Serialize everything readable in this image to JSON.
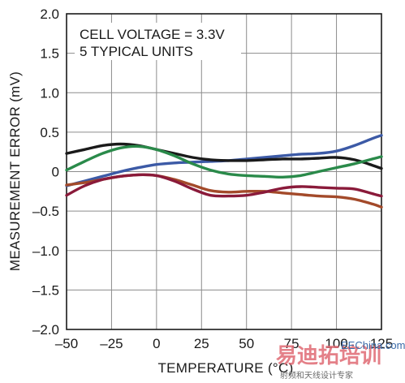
{
  "chart_data": {
    "type": "line",
    "title": "",
    "annotations": [
      "CELL VOLTAGE = 3.3V",
      "5 TYPICAL UNITS"
    ],
    "xlabel": "TEMPERATURE (°C)",
    "ylabel": "MEASUREMENT ERROR (mV)",
    "xlim": [
      -50,
      125
    ],
    "ylim": [
      -2.0,
      2.0
    ],
    "x_ticks": [
      -50,
      -25,
      0,
      25,
      50,
      75,
      100,
      125
    ],
    "x_tick_labels": [
      "–50",
      "–25",
      "0",
      "25",
      "50",
      "75",
      "100",
      "125"
    ],
    "y_ticks": [
      2.0,
      1.5,
      1.0,
      0.5,
      0,
      -0.5,
      -1.0,
      -1.5,
      -2.0
    ],
    "y_tick_labels": [
      "2.0",
      "1.5",
      "1.0",
      "0.5",
      "0",
      "–0.5",
      "–1.0",
      "–1.5",
      "–2.0"
    ],
    "grid": true,
    "x": [
      -50,
      -40,
      -30,
      -20,
      -10,
      0,
      10,
      20,
      30,
      40,
      50,
      60,
      70,
      80,
      90,
      100,
      110,
      120,
      125
    ],
    "series": [
      {
        "color": "#3c5aa6",
        "values": [
          -0.18,
          -0.12,
          -0.06,
          0.0,
          0.05,
          0.09,
          0.11,
          0.12,
          0.13,
          0.14,
          0.16,
          0.18,
          0.2,
          0.22,
          0.23,
          0.26,
          0.33,
          0.42,
          0.46
        ]
      },
      {
        "color": "#1a1a1a",
        "values": [
          0.23,
          0.28,
          0.33,
          0.35,
          0.33,
          0.28,
          0.23,
          0.18,
          0.15,
          0.14,
          0.14,
          0.15,
          0.16,
          0.16,
          0.17,
          0.18,
          0.15,
          0.08,
          0.04
        ]
      },
      {
        "color": "#2a8a4a",
        "values": [
          0.02,
          0.13,
          0.23,
          0.3,
          0.32,
          0.28,
          0.2,
          0.1,
          0.02,
          -0.03,
          -0.05,
          -0.06,
          -0.07,
          -0.05,
          0.0,
          0.05,
          0.1,
          0.16,
          0.19
        ]
      },
      {
        "color": "#a34a2a",
        "values": [
          -0.17,
          -0.14,
          -0.1,
          -0.06,
          -0.04,
          -0.05,
          -0.1,
          -0.17,
          -0.24,
          -0.26,
          -0.25,
          -0.25,
          -0.27,
          -0.29,
          -0.31,
          -0.32,
          -0.35,
          -0.41,
          -0.45
        ]
      },
      {
        "color": "#8a1a3a",
        "values": [
          -0.3,
          -0.18,
          -0.1,
          -0.06,
          -0.04,
          -0.05,
          -0.12,
          -0.22,
          -0.3,
          -0.31,
          -0.3,
          -0.26,
          -0.21,
          -0.19,
          -0.2,
          -0.21,
          -0.22,
          -0.28,
          -0.31
        ]
      }
    ]
  },
  "watermark": {
    "brand": "易迪拓培训",
    "site": "EEChina.com",
    "subtitle": "射频和天线设计专家"
  }
}
